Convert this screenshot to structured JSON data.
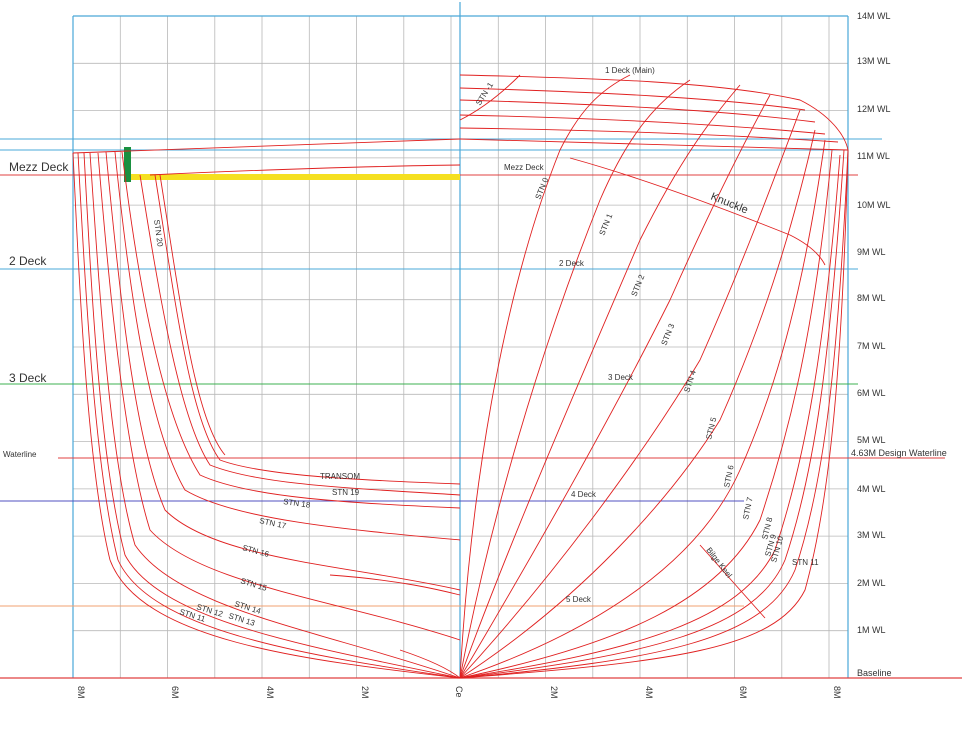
{
  "diagram": {
    "waterlines": [
      {
        "label": "14M WL"
      },
      {
        "label": "13M WL"
      },
      {
        "label": "12M WL"
      },
      {
        "label": "11M WL"
      },
      {
        "label": "10M WL"
      },
      {
        "label": "9M WL"
      },
      {
        "label": "8M WL"
      },
      {
        "label": "7M WL"
      },
      {
        "label": "6M WL"
      },
      {
        "label": "5M WL"
      },
      {
        "label": "4M WL"
      },
      {
        "label": "3M WL"
      },
      {
        "label": "2M WL"
      },
      {
        "label": "1M WL"
      },
      {
        "label": "Baseline"
      }
    ],
    "design_waterline": "4.63M Design Waterline",
    "left_labels": {
      "mezz_deck": "Mezz Deck",
      "deck2": "2 Deck",
      "deck3": "3 Deck",
      "waterline": "Waterline"
    },
    "bottom_labels": [
      "8M",
      "6M",
      "4M",
      "2M",
      "Ce",
      "2M",
      "4M",
      "6M",
      "8M"
    ],
    "aft_stations": [
      "TRANSOM",
      "STN 19",
      "STN 18",
      "STN 17",
      "STN 16",
      "STN 15",
      "STN 14",
      "STN 13",
      "STN 12",
      "STN 11",
      "STN 20"
    ],
    "fwd_stations": [
      "STN -1",
      "STN 0",
      "STN 1",
      "STN 2",
      "STN 3",
      "STN 4",
      "STN 5",
      "STN 6",
      "STN 7",
      "STN 8",
      "STN 9",
      "STN 10",
      "STN 11"
    ],
    "deck_labels": {
      "deck1": "1 Deck (Main)",
      "mezz": "Mezz Deck",
      "deck2": "2 Deck",
      "deck3": "3 Deck",
      "deck4": "4 Deck",
      "deck5": "5 Deck"
    },
    "features": {
      "knuckle": "Knuckle",
      "bilge_keel": "Bilge Keel"
    },
    "colors": {
      "grid": "#b8b8b8",
      "frame": "#4aa8d8",
      "hull_lines": "#e02020",
      "baseline": "#e04040",
      "deck3_line": "#3cb050",
      "deck4_line": "#5050c0",
      "deck5_line": "#f0a070",
      "mezz_highlight": "#f5e020",
      "green_block": "#1a9040"
    }
  }
}
